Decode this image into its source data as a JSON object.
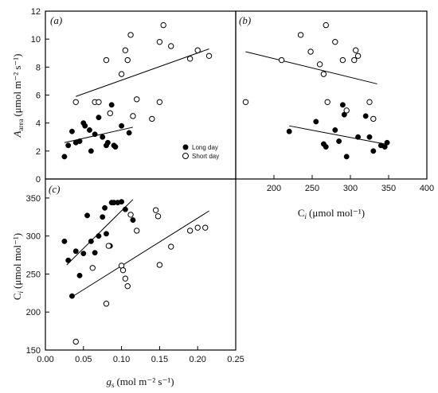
{
  "chart_data": [
    {
      "panel": "a",
      "type": "scatter",
      "panel_label": "(a)",
      "ylabel": "A_area (μmol m⁻² s⁻¹)",
      "ylabel_main": "A",
      "ylabel_sub": "area",
      "ylabel_units": "(μmol m⁻² s⁻¹)",
      "xlim": [
        0,
        0.25
      ],
      "ylim": [
        0,
        12
      ],
      "yticks": [
        "0",
        "2",
        "4",
        "6",
        "8",
        "10",
        "12"
      ],
      "legend": {
        "placement": "lower-right",
        "entries": [
          "Long day",
          "Short day"
        ]
      },
      "series": [
        {
          "name": "Long day",
          "marker": "filled-circle",
          "x": [
            0.025,
            0.03,
            0.035,
            0.04,
            0.045,
            0.05,
            0.052,
            0.058,
            0.06,
            0.065,
            0.07,
            0.075,
            0.08,
            0.082,
            0.087,
            0.09,
            0.092,
            0.1,
            0.11,
            0.115
          ],
          "y": [
            1.6,
            2.4,
            3.4,
            2.6,
            2.7,
            4.0,
            3.8,
            3.5,
            2.0,
            3.2,
            4.4,
            3.0,
            2.4,
            2.6,
            5.3,
            2.4,
            2.3,
            3.8,
            3.3,
            4.5
          ],
          "trend": [
            [
              0.025,
              2.6
            ],
            [
              0.115,
              3.7
            ]
          ]
        },
        {
          "name": "Short day",
          "marker": "open-circle",
          "x": [
            0.04,
            0.065,
            0.07,
            0.08,
            0.085,
            0.1,
            0.105,
            0.108,
            0.112,
            0.115,
            0.12,
            0.14,
            0.15,
            0.155,
            0.15,
            0.165,
            0.19,
            0.2,
            0.215
          ],
          "y": [
            5.5,
            5.5,
            5.5,
            8.5,
            4.7,
            7.5,
            9.2,
            8.5,
            10.3,
            4.5,
            5.7,
            4.3,
            9.8,
            11.0,
            5.5,
            9.5,
            8.6,
            9.2,
            8.8
          ],
          "trend": [
            [
              0.04,
              5.9
            ],
            [
              0.215,
              9.3
            ]
          ]
        }
      ]
    },
    {
      "panel": "b",
      "type": "scatter",
      "panel_label": "(b)",
      "xlabel": "C_i (μmol mol⁻¹)",
      "xlabel_main": "C",
      "xlabel_sub": "i",
      "xlabel_units": "(μmol mol⁻¹)",
      "xlim": [
        150,
        400
      ],
      "ylim": [
        0,
        12
      ],
      "xticks": [
        "200",
        "250",
        "300",
        "350",
        "400"
      ],
      "series": [
        {
          "name": "Long day",
          "marker": "filled-circle",
          "x": [
            220,
            255,
            265,
            268,
            280,
            285,
            290,
            292,
            295,
            310,
            320,
            325,
            330,
            340,
            345,
            348
          ],
          "y": [
            3.4,
            4.1,
            2.5,
            2.3,
            3.5,
            2.7,
            5.3,
            4.6,
            1.6,
            3.0,
            4.5,
            3.0,
            2.0,
            2.4,
            2.3,
            2.6
          ],
          "trend": [
            [
              220,
              3.8
            ],
            [
              345,
              2.5
            ]
          ]
        },
        {
          "name": "Short day",
          "marker": "open-circle",
          "x": [
            163,
            210,
            235,
            248,
            260,
            265,
            268,
            270,
            280,
            290,
            295,
            305,
            307,
            310,
            325,
            330
          ],
          "y": [
            5.5,
            8.5,
            10.3,
            9.1,
            8.2,
            7.5,
            11.0,
            5.5,
            9.8,
            8.5,
            4.9,
            8.5,
            9.2,
            8.8,
            5.5,
            4.3
          ],
          "trend": [
            [
              163,
              9.1
            ],
            [
              335,
              6.8
            ]
          ]
        }
      ]
    },
    {
      "panel": "c",
      "type": "scatter",
      "panel_label": "(c)",
      "xlabel": "g_s (mol m⁻² s⁻¹)",
      "xlabel_main": "g",
      "xlabel_sub": "s",
      "xlabel_units": "(mol m⁻² s⁻¹)",
      "ylabel": "C_i (μmol mol⁻¹)",
      "ylabel_main": "C",
      "ylabel_sub": "i",
      "ylabel_units": "(μmol mol⁻¹)",
      "xlim": [
        0,
        0.25
      ],
      "ylim": [
        150,
        375
      ],
      "xticks": [
        "0.00",
        "0.05",
        "0.10",
        "0.15",
        "0.20",
        "0.25"
      ],
      "yticks": [
        "150",
        "200",
        "250",
        "300",
        "350"
      ],
      "series": [
        {
          "name": "Long day",
          "marker": "filled-circle",
          "x": [
            0.025,
            0.03,
            0.035,
            0.04,
            0.045,
            0.05,
            0.055,
            0.06,
            0.065,
            0.07,
            0.075,
            0.078,
            0.08,
            0.085,
            0.087,
            0.09,
            0.095,
            0.1,
            0.105,
            0.115
          ],
          "y": [
            293,
            268,
            221,
            280,
            248,
            277,
            327,
            293,
            278,
            300,
            325,
            337,
            303,
            287,
            344,
            344,
            344,
            345,
            335,
            321
          ],
          "trend": [
            [
              0.028,
              262
            ],
            [
              0.115,
              348
            ]
          ]
        },
        {
          "name": "Short day",
          "marker": "open-circle",
          "x": [
            0.04,
            0.062,
            0.08,
            0.083,
            0.1,
            0.102,
            0.105,
            0.108,
            0.112,
            0.12,
            0.145,
            0.148,
            0.15,
            0.165,
            0.19,
            0.2,
            0.21
          ],
          "y": [
            161,
            258,
            211,
            287,
            261,
            255,
            244,
            234,
            328,
            307,
            334,
            326,
            262,
            286,
            307,
            311,
            311
          ],
          "trend": [
            [
              0.035,
              220
            ],
            [
              0.215,
              333
            ]
          ]
        }
      ]
    }
  ]
}
